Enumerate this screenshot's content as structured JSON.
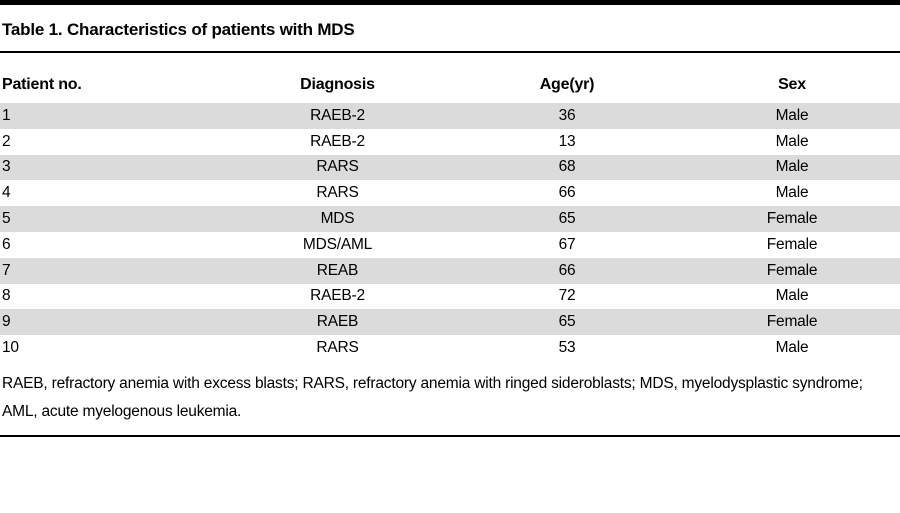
{
  "title": "Table 1. Characteristics of patients with MDS",
  "table": {
    "columns": [
      "Patient no.",
      "Diagnosis",
      "Age(yr)",
      "Sex"
    ],
    "rows": [
      [
        "1",
        "RAEB-2",
        "36",
        "Male"
      ],
      [
        "2",
        "RAEB-2",
        "13",
        "Male"
      ],
      [
        "3",
        "RARS",
        "68",
        "Male"
      ],
      [
        "4",
        "RARS",
        "66",
        "Male"
      ],
      [
        "5",
        "MDS",
        "65",
        "Female"
      ],
      [
        "6",
        "MDS/AML",
        "67",
        "Female"
      ],
      [
        "7",
        "REAB",
        "66",
        "Female"
      ],
      [
        "8",
        "RAEB-2",
        "72",
        "Male"
      ],
      [
        "9",
        "RAEB",
        "65",
        "Female"
      ],
      [
        "10",
        "RARS",
        "53",
        "Male"
      ]
    ]
  },
  "footnote": "RAEB, refractory anemia with excess blasts; RARS, refractory anemia with ringed sideroblasts; MDS, myelodysplastic syndrome; AML, acute myelogenous leukemia.",
  "colors": {
    "row_stripe": "#dbdbdb",
    "rule": "#000000",
    "text": "#000000"
  }
}
